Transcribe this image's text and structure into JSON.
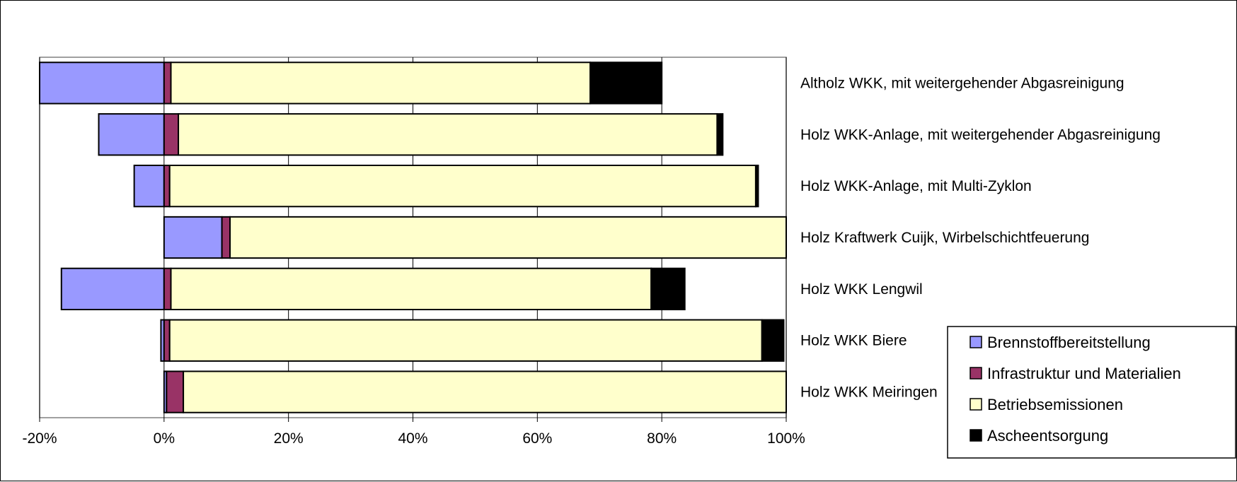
{
  "chart_data": {
    "type": "bar",
    "orientation": "horizontal",
    "stacked": true,
    "xlim": [
      -20,
      100
    ],
    "x_ticks": [
      -20,
      0,
      20,
      40,
      60,
      80,
      100
    ],
    "x_tick_labels": [
      "-20%",
      "0%",
      "20%",
      "40%",
      "60%",
      "80%",
      "100%"
    ],
    "grid": true,
    "legend_position": "bottom-right",
    "categories": [
      "Altholz WKK, mit weitergehender Abgasreinigung",
      "Holz WKK-Anlage, mit weitergehender Abgasreinigung",
      "Holz WKK-Anlage, mit Multi-Zyklon",
      "Holz Kraftwerk Cuijk, Wirbelschichtfeuerung",
      "Holz WKK Lengwil",
      "Holz WKK Biere",
      "Holz WKK Meiringen"
    ],
    "series": [
      {
        "name": "Brennstoffbereitstellung",
        "color": "#9999ff",
        "values": [
          -20,
          -10.5,
          -4.8,
          9.3,
          -16.5,
          -0.5,
          0.4
        ]
      },
      {
        "name": "Infrastruktur und Materialien",
        "color": "#993366",
        "values": [
          1.1,
          2.3,
          0.9,
          1.3,
          1.1,
          0.9,
          2.7
        ]
      },
      {
        "name": "Betriebsemissionen",
        "color": "#ffffcc",
        "values": [
          67.4,
          86.6,
          94.2,
          89.4,
          77.2,
          95.2,
          96.9
        ]
      },
      {
        "name": "Ascheentsorgung",
        "color": "#000000",
        "values": [
          11.5,
          0.9,
          0.4,
          0,
          5.4,
          3.5,
          0
        ]
      }
    ]
  }
}
